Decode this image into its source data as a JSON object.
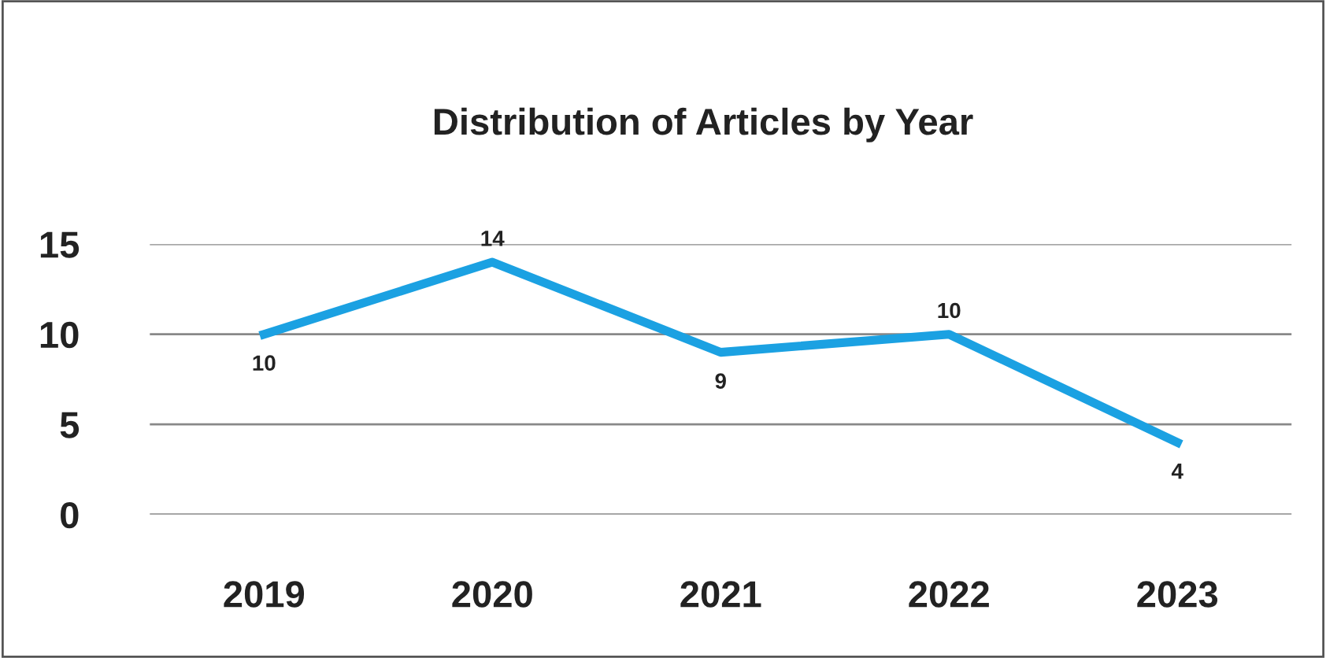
{
  "chart_data": {
    "type": "line",
    "title": "Distribution of Articles by Year",
    "categories": [
      "2019",
      "2020",
      "2021",
      "2022",
      "2023"
    ],
    "series": [
      {
        "color": "#1ba1e2",
        "values": [
          10,
          14,
          9,
          10,
          4
        ]
      }
    ],
    "ylim": [
      0,
      15
    ],
    "yticks": [
      0,
      5,
      10,
      15
    ],
    "grid": "y",
    "data_labels": true,
    "marker": "none",
    "line_style": "solid"
  }
}
